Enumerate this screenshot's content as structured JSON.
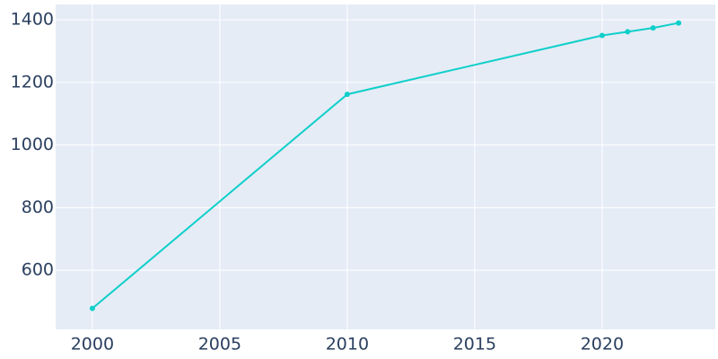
{
  "chart_data": {
    "type": "line",
    "x": [
      2000,
      2010,
      2020,
      2021,
      2022,
      2023
    ],
    "series": [
      {
        "color": "#0fcfca",
        "values": [
          478,
          1162,
          1350,
          1362,
          1374,
          1390
        ]
      }
    ],
    "xlim": [
      1998.56,
      2024.44
    ],
    "xticks": [
      2000,
      2005,
      2010,
      2015,
      2020
    ],
    "ylim": [
      411,
      1449
    ],
    "yticks": [
      600,
      800,
      1000,
      1200,
      1400
    ],
    "grid": true
  }
}
